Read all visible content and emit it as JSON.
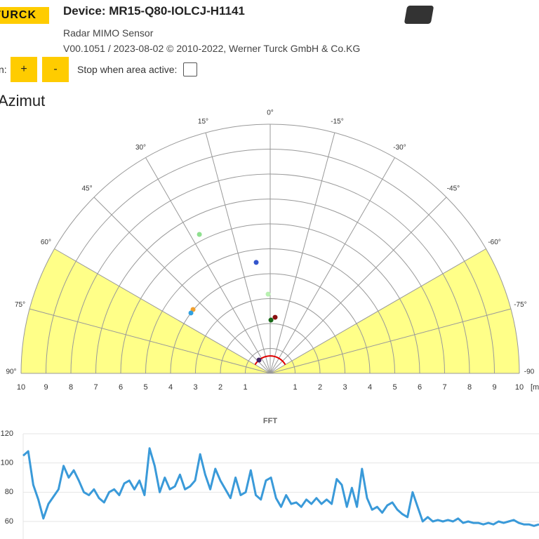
{
  "header": {
    "logo": "TURCK",
    "device": "Device: MR15-Q80-IOLCJ-H1141",
    "subtitle": "Radar MIMO Sensor",
    "version": "V00.1051 / 2023-08-02 © 2010-2022, Werner Turck GmbH & Co.KG"
  },
  "controls": {
    "zoom_label": "n:",
    "zoom_in": "+",
    "zoom_out": "-",
    "stop_label": "Stop when area active:"
  },
  "chart_data": [
    {
      "type": "polar",
      "title": "Azimut",
      "r_unit": "[m",
      "rlim": [
        0,
        10
      ],
      "rticks": [
        1,
        2,
        3,
        4,
        5,
        6,
        7,
        8,
        9,
        10
      ],
      "angleticks": [
        {
          "value": 90,
          "label": "90°"
        },
        {
          "value": 75,
          "label": "75°"
        },
        {
          "value": 60,
          "label": "60°"
        },
        {
          "value": 45,
          "label": "45°"
        },
        {
          "value": 30,
          "label": "30°"
        },
        {
          "value": 15,
          "label": "15°"
        },
        {
          "value": 0,
          "label": "0°"
        },
        {
          "value": -15,
          "label": "-15°"
        },
        {
          "value": -30,
          "label": "-30°"
        },
        {
          "value": -45,
          "label": "-45°"
        },
        {
          "value": -60,
          "label": "-60°"
        },
        {
          "value": -75,
          "label": "-75°"
        },
        {
          "value": -90,
          "label": "-90"
        }
      ],
      "zones": [
        {
          "from": 60,
          "to": 90,
          "color": "#ffff88"
        },
        {
          "from": -60,
          "to": -90,
          "color": "#ffff88"
        }
      ],
      "min_range": 0.7,
      "min_range_color": "#e00000",
      "points": {
        "angle": [
          27,
          7.2,
          1.5,
          50.4,
          52.7,
          -0.8,
          -5,
          40
        ],
        "range": [
          6.26,
          4.49,
          3.18,
          4.02,
          4.0,
          2.14,
          2.26,
          0.7
        ],
        "colors": [
          "#8fe08f",
          "#3355cc",
          "#b8f0b0",
          "#f0a030",
          "#30a0e0",
          "#1a6a1a",
          "#8a1010",
          "#402060"
        ]
      }
    },
    {
      "type": "line",
      "title": "FFT",
      "color": "#3a9ad9",
      "grid": true,
      "ylim": [
        48,
        120
      ],
      "yticks": [
        60,
        80,
        100,
        120
      ],
      "values": [
        105,
        108,
        85,
        75,
        62,
        72,
        77,
        82,
        98,
        90,
        95,
        88,
        80,
        78,
        82,
        76,
        73,
        80,
        82,
        78,
        86,
        88,
        82,
        88,
        78,
        110,
        98,
        80,
        90,
        82,
        84,
        92,
        82,
        84,
        88,
        106,
        92,
        82,
        96,
        88,
        82,
        76,
        90,
        78,
        80,
        95,
        78,
        75,
        88,
        90,
        76,
        70,
        78,
        72,
        73,
        70,
        75,
        72,
        76,
        72,
        75,
        72,
        89,
        85,
        70,
        83,
        70,
        96,
        76,
        68,
        70,
        66,
        71,
        73,
        68,
        65,
        63,
        80,
        70,
        60,
        63,
        60,
        61,
        60,
        61,
        60,
        62,
        59,
        60,
        59,
        59,
        58,
        59,
        58,
        60,
        59,
        60,
        61,
        59,
        58,
        58,
        57,
        58
      ]
    }
  ]
}
